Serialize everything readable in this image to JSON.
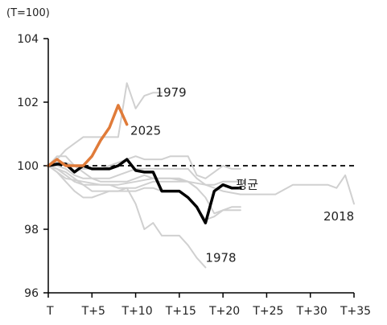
{
  "chart_data": {
    "type": "line",
    "unit_label": "(T=100)",
    "xlim": [
      0,
      35
    ],
    "ylim": [
      96,
      104
    ],
    "x_ticks": [
      {
        "value": 0,
        "label": "T"
      },
      {
        "value": 5,
        "label": "T+5"
      },
      {
        "value": 10,
        "label": "T+10"
      },
      {
        "value": 15,
        "label": "T+15"
      },
      {
        "value": 20,
        "label": "T+20"
      },
      {
        "value": 25,
        "label": "T+25"
      },
      {
        "value": 30,
        "label": "T+30"
      },
      {
        "value": 35,
        "label": "T+35"
      }
    ],
    "y_ticks": [
      {
        "value": 96,
        "label": "96"
      },
      {
        "value": 98,
        "label": "98"
      },
      {
        "value": 100,
        "label": "100"
      },
      {
        "value": 102,
        "label": "102"
      },
      {
        "value": 104,
        "label": "104"
      }
    ],
    "reference_line": {
      "y": 100,
      "style": "dashed",
      "color": "#000000"
    },
    "grid": false,
    "series": [
      {
        "name": "1979",
        "color": "#d0d0d0",
        "width": 2,
        "highlight": false,
        "x": [
          0,
          1,
          2,
          3,
          4,
          5,
          6,
          7,
          8,
          9,
          10,
          11,
          12,
          13
        ],
        "y": [
          100,
          100.2,
          100.5,
          100.7,
          100.9,
          100.9,
          100.9,
          100.9,
          100.9,
          102.6,
          101.8,
          102.2,
          102.3,
          102.3
        ]
      },
      {
        "name": "1978",
        "color": "#d0d0d0",
        "width": 2,
        "highlight": false,
        "x": [
          0,
          1,
          2,
          3,
          4,
          5,
          6,
          7,
          8,
          9,
          10,
          11,
          12,
          13,
          14,
          15,
          16,
          17,
          18
        ],
        "y": [
          100,
          99.9,
          99.7,
          99.5,
          99.4,
          99.4,
          99.4,
          99.4,
          99.3,
          99.3,
          98.8,
          98.0,
          98.2,
          97.8,
          97.8,
          97.8,
          97.5,
          97.1,
          96.8
        ]
      },
      {
        "name": "2018",
        "color": "#d0d0d0",
        "width": 2,
        "highlight": false,
        "x": [
          0,
          2,
          4,
          6,
          8,
          10,
          12,
          14,
          16,
          18,
          20,
          22,
          24,
          26,
          28,
          30,
          32,
          33,
          34,
          35
        ],
        "y": [
          100,
          99.6,
          99.5,
          99.4,
          99.4,
          99.5,
          99.6,
          99.6,
          99.5,
          99.4,
          99.2,
          99.1,
          99.1,
          99.1,
          99.4,
          99.4,
          99.4,
          99.3,
          99.7,
          98.8
        ]
      },
      {
        "name": "",
        "color": "#d0d0d0",
        "width": 2,
        "highlight": false,
        "x": [
          0,
          1,
          2,
          3,
          4,
          5,
          6,
          7,
          8,
          9,
          10,
          11,
          12,
          13,
          14,
          15,
          16,
          17,
          18,
          19,
          20,
          21,
          22
        ],
        "y": [
          100,
          100.3,
          100.3,
          100.0,
          99.8,
          99.6,
          99.5,
          99.5,
          99.5,
          99.5,
          99.6,
          99.7,
          99.6,
          99.6,
          99.6,
          99.6,
          99.5,
          99.3,
          99.0,
          98.5,
          98.6,
          98.6,
          98.6
        ]
      },
      {
        "name": "",
        "color": "#d0d0d0",
        "width": 2,
        "highlight": false,
        "x": [
          0,
          1,
          2,
          3,
          4,
          5,
          6,
          7,
          8,
          9,
          10,
          11,
          12,
          13,
          14,
          15,
          16,
          17,
          18,
          19,
          20,
          21,
          22
        ],
        "y": [
          100,
          99.9,
          99.8,
          99.6,
          99.4,
          99.2,
          99.2,
          99.2,
          99.2,
          99.2,
          99.2,
          99.3,
          99.3,
          99.2,
          99.2,
          99.2,
          99.0,
          98.7,
          98.3,
          98.4,
          98.6,
          98.7,
          98.7
        ]
      },
      {
        "name": "",
        "color": "#d0d0d0",
        "width": 2,
        "highlight": false,
        "x": [
          0,
          1,
          2,
          3,
          4,
          5,
          6,
          7,
          8,
          9,
          10,
          11,
          12,
          13,
          14,
          15,
          16,
          17,
          18,
          19,
          20,
          21,
          22
        ],
        "y": [
          100,
          100.0,
          99.9,
          99.7,
          99.6,
          99.6,
          99.6,
          99.6,
          99.7,
          99.8,
          99.9,
          99.9,
          99.9,
          99.9,
          99.9,
          99.9,
          99.9,
          99.6,
          99.4,
          99.4,
          99.5,
          99.5,
          99.5
        ]
      },
      {
        "name": "",
        "color": "#d0d0d0",
        "width": 2,
        "highlight": false,
        "x": [
          0,
          1,
          2,
          3,
          4,
          5,
          6,
          7,
          8,
          9,
          10,
          11,
          12,
          13,
          14,
          15,
          16,
          17
        ],
        "y": [
          100,
          99.8,
          99.5,
          99.2,
          99.0,
          99.0,
          99.1,
          99.2,
          99.2,
          99.3,
          99.3,
          99.4,
          99.5,
          99.5,
          99.5,
          99.5,
          99.5,
          99.3
        ]
      },
      {
        "name": "",
        "color": "#d0d0d0",
        "width": 2,
        "highlight": false,
        "x": [
          0,
          1,
          2,
          3,
          4,
          5,
          6,
          7,
          8,
          9,
          10,
          11,
          12,
          13,
          14,
          15,
          16,
          17,
          18,
          19,
          20,
          21,
          22
        ],
        "y": [
          100,
          100.1,
          100.1,
          100.0,
          99.9,
          99.9,
          99.9,
          100.0,
          100.1,
          100.2,
          100.3,
          100.2,
          100.2,
          100.2,
          100.3,
          100.3,
          100.3,
          99.7,
          99.6,
          99.8,
          100.0,
          99.9,
          99.9
        ]
      },
      {
        "name": "평균",
        "color": "#000000",
        "width": 3.5,
        "highlight": true,
        "x": [
          0,
          1,
          2,
          3,
          4,
          5,
          6,
          7,
          8,
          9,
          10,
          11,
          12,
          13,
          14,
          15,
          16,
          17,
          18,
          19,
          20,
          21,
          22
        ],
        "y": [
          100,
          100.05,
          100.05,
          99.8,
          100.0,
          99.9,
          99.9,
          99.9,
          100.0,
          100.2,
          99.85,
          99.8,
          99.8,
          99.2,
          99.2,
          99.2,
          99.0,
          98.7,
          98.2,
          99.2,
          99.4,
          99.3,
          99.3
        ]
      },
      {
        "name": "2025",
        "color": "#e07b39",
        "width": 3.5,
        "highlight": true,
        "x": [
          0,
          1,
          2,
          3,
          4,
          5,
          6,
          7,
          8,
          9
        ],
        "y": [
          100,
          100.2,
          100.0,
          100.0,
          100.0,
          100.3,
          100.8,
          101.2,
          101.9,
          101.3
        ]
      }
    ],
    "annotations": [
      {
        "text": "1979",
        "x": 12.3,
        "y": 102.3
      },
      {
        "text": "2025",
        "x": 9.4,
        "y": 101.1
      },
      {
        "text": "평균",
        "x": 21.5,
        "y": 99.4
      },
      {
        "text": "2018",
        "x": 31.5,
        "y": 98.4
      },
      {
        "text": "1978",
        "x": 18.0,
        "y": 97.1
      }
    ]
  }
}
